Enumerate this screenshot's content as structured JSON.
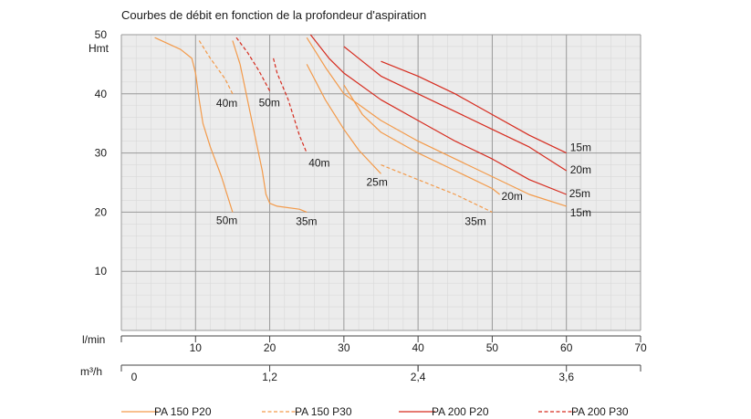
{
  "chart_data": {
    "type": "line",
    "title": "Courbes de débit en fonction de la profondeur d'aspiration",
    "ylabel": "Hmt",
    "xlabel": "l/min",
    "x2label": "m³/h",
    "ylim": [
      0,
      50
    ],
    "xlim": [
      0,
      70
    ],
    "yticks": [
      "10",
      "20",
      "30",
      "40",
      "50"
    ],
    "xticks": [
      "10",
      "20",
      "30",
      "40",
      "50",
      "60",
      "70"
    ],
    "x2ticks": [
      "0",
      "1,2",
      "2,4",
      "3,6"
    ],
    "grid": true,
    "legend_position": "bottom",
    "colors": {
      "PA150": "#f39a4a",
      "PA200": "#d62b1e",
      "grid_major": "#9a9a9a",
      "grid_minor": "#d8d8d8",
      "plot_bg": "#ececec"
    },
    "legend": [
      {
        "label": "PA 150 P20",
        "color": "#f39a4a",
        "dashed": false
      },
      {
        "label": "PA 150 P30",
        "color": "#f39a4a",
        "dashed": true
      },
      {
        "label": "PA 200 P20",
        "color": "#d62b1e",
        "dashed": false
      },
      {
        "label": "PA 200 P30",
        "color": "#d62b1e",
        "dashed": true
      }
    ],
    "series": [
      {
        "model": "PA 150 P20",
        "label": "50m",
        "color": "#f39a4a",
        "dashed": false,
        "points": [
          [
            4.5,
            49.5
          ],
          [
            8,
            47.5
          ],
          [
            9.5,
            46
          ],
          [
            10,
            43.5
          ],
          [
            10.5,
            39
          ],
          [
            11,
            35
          ],
          [
            12,
            31
          ],
          [
            13.5,
            26
          ],
          [
            15,
            20
          ]
        ]
      },
      {
        "model": "PA 150 P30",
        "label": "40m",
        "color": "#f39a4a",
        "dashed": true,
        "points": [
          [
            10.5,
            49
          ],
          [
            12,
            46
          ],
          [
            14,
            42.5
          ],
          [
            15,
            40
          ]
        ]
      },
      {
        "model": "PA 150 P20",
        "label": "35m",
        "color": "#f39a4a",
        "dashed": false,
        "points": [
          [
            15,
            49
          ],
          [
            16,
            45
          ],
          [
            17,
            39
          ],
          [
            18,
            33
          ],
          [
            19,
            27
          ],
          [
            19.5,
            23
          ],
          [
            20,
            21.5
          ],
          [
            21,
            21
          ],
          [
            24,
            20.5
          ],
          [
            25,
            20
          ]
        ]
      },
      {
        "model": "PA 200 P30",
        "label": "50m",
        "color": "#d62b1e",
        "dashed": true,
        "points": [
          [
            15.5,
            49.5
          ],
          [
            17,
            47
          ],
          [
            18.5,
            44
          ],
          [
            20,
            40.5
          ]
        ]
      },
      {
        "model": "PA 200 P30",
        "label": "40m",
        "color": "#d62b1e",
        "dashed": true,
        "points": [
          [
            20.5,
            46
          ],
          [
            21,
            43.5
          ],
          [
            22.5,
            39
          ],
          [
            24,
            33
          ],
          [
            25,
            30
          ]
        ]
      },
      {
        "model": "PA 150 P20",
        "label": "25m",
        "color": "#f39a4a",
        "dashed": false,
        "points": [
          [
            25,
            45
          ],
          [
            27.5,
            39
          ],
          [
            30,
            34
          ],
          [
            32,
            30.5
          ],
          [
            35,
            26.5
          ]
        ]
      },
      {
        "model": "PA 150 P30",
        "label": "35m",
        "color": "#f39a4a",
        "dashed": true,
        "points": [
          [
            35,
            28
          ],
          [
            40,
            25.5
          ],
          [
            45,
            23
          ],
          [
            50,
            20
          ]
        ]
      },
      {
        "model": "PA 150 P20",
        "label": "20m",
        "color": "#f39a4a",
        "dashed": false,
        "points": [
          [
            30,
            41.5
          ],
          [
            32.5,
            36.5
          ],
          [
            35,
            33.5
          ],
          [
            40,
            30
          ],
          [
            45,
            27
          ],
          [
            50,
            24
          ],
          [
            51,
            23
          ]
        ]
      },
      {
        "model": "PA 150 P20",
        "label": "15m",
        "color": "#f39a4a",
        "dashed": false,
        "points": [
          [
            25,
            49.5
          ],
          [
            27.5,
            44.5
          ],
          [
            30,
            40
          ],
          [
            35,
            35.5
          ],
          [
            40,
            32
          ],
          [
            45,
            29
          ],
          [
            50,
            26
          ],
          [
            55,
            23
          ],
          [
            60,
            21
          ]
        ]
      },
      {
        "model": "PA 200 P20",
        "label": "25m",
        "color": "#d62b1e",
        "dashed": false,
        "points": [
          [
            25.5,
            50
          ],
          [
            28,
            46
          ],
          [
            30,
            43.5
          ],
          [
            35,
            39
          ],
          [
            40,
            35.5
          ],
          [
            45,
            32
          ],
          [
            50,
            29
          ],
          [
            55,
            25.5
          ],
          [
            60,
            23
          ]
        ]
      },
      {
        "model": "PA 200 P20",
        "label": "20m",
        "color": "#d62b1e",
        "dashed": false,
        "points": [
          [
            30,
            48
          ],
          [
            32.5,
            45.5
          ],
          [
            35,
            43
          ],
          [
            40,
            40
          ],
          [
            45,
            37
          ],
          [
            50,
            34
          ],
          [
            55,
            31
          ],
          [
            60,
            27
          ]
        ]
      },
      {
        "model": "PA 200 P20",
        "label": "15m",
        "color": "#d62b1e",
        "dashed": false,
        "points": [
          [
            35,
            45.5
          ],
          [
            40,
            43
          ],
          [
            45,
            40
          ],
          [
            50,
            36.5
          ],
          [
            55,
            33
          ],
          [
            60,
            30
          ]
        ]
      }
    ]
  }
}
